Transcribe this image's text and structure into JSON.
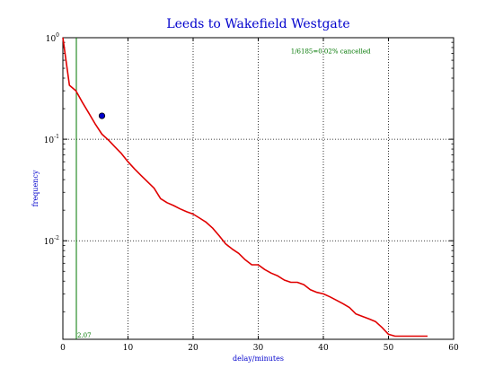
{
  "chart_data": {
    "type": "line",
    "title": "Leeds to Wakefield Westgate",
    "xlabel": "delay/minutes",
    "ylabel": "frequency",
    "xlim": [
      0,
      60
    ],
    "ylim": [
      0.00107,
      1.0
    ],
    "yscale": "log",
    "grid": true,
    "xticks": [
      0,
      10,
      20,
      30,
      40,
      50,
      60
    ],
    "xtick_labels": [
      "0",
      "10",
      "20",
      "30",
      "40",
      "50",
      "60"
    ],
    "yticks": [
      {
        "value": 1.0,
        "base": "10",
        "exp": "0"
      },
      {
        "value": 0.1,
        "base": "10",
        "exp": "-1"
      },
      {
        "value": 0.01,
        "base": "10",
        "exp": "-2"
      }
    ],
    "series": [
      {
        "color": "#e00000",
        "x": [
          0,
          1,
          2,
          3,
          4,
          5,
          6,
          7,
          8,
          9,
          10,
          11,
          12,
          13,
          14,
          15,
          16,
          17,
          18,
          19,
          20,
          21,
          22,
          23,
          24,
          25,
          26,
          27,
          28,
          29,
          30,
          31,
          32,
          33,
          34,
          35,
          36,
          37,
          38,
          39,
          40,
          41,
          42,
          43,
          44,
          45,
          46,
          47,
          48,
          49,
          50,
          51,
          52,
          53,
          54,
          55,
          56
        ],
        "y": [
          1.0,
          0.34,
          0.3,
          0.23,
          0.18,
          0.14,
          0.112,
          0.098,
          0.084,
          0.072,
          0.06,
          0.051,
          0.044,
          0.038,
          0.033,
          0.026,
          0.0237,
          0.0222,
          0.0206,
          0.0193,
          0.0183,
          0.0167,
          0.0152,
          0.0133,
          0.0112,
          0.0093,
          0.0083,
          0.0075,
          0.0065,
          0.0058,
          0.0058,
          0.0052,
          0.0048,
          0.0045,
          0.0041,
          0.0039,
          0.0039,
          0.0037,
          0.0033,
          0.0031,
          0.003,
          0.0028,
          0.0026,
          0.0024,
          0.0022,
          0.0019,
          0.0018,
          0.0017,
          0.0016,
          0.0014,
          0.0012,
          0.00115,
          0.00115,
          0.00115,
          0.00115,
          0.00115,
          0.00115
        ]
      }
    ],
    "vline": {
      "x": 2.07,
      "label": "2.07",
      "color": "#007700"
    },
    "point": {
      "x": 6,
      "y": 0.17,
      "color": "#0000cc"
    },
    "annotation": {
      "text": "1/6185=0.02% cancelled",
      "x": 35,
      "y": 0.7,
      "color": "#007700"
    }
  }
}
